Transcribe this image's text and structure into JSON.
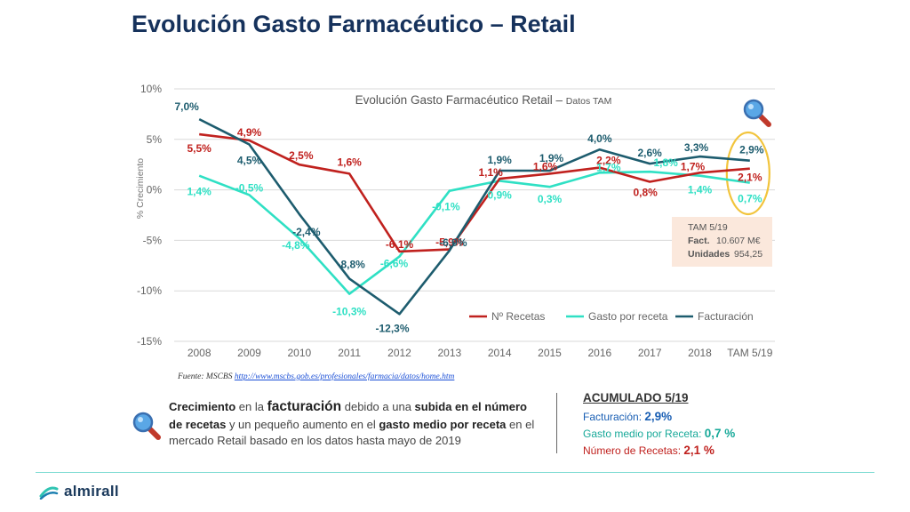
{
  "slide": {
    "title": "Evolución Gasto Farmacéutico – Retail",
    "source_prefix": "Fuente: MSCBS ",
    "source_link": "http://www.mscbs.gob.es/profesionales/farmacia/datos/home.htm",
    "logo_text": "almirall"
  },
  "chart_data": {
    "type": "line",
    "title": "Evolución Gasto Farmacéutico Retail",
    "title_connector": " – ",
    "subtitle": "Datos TAM",
    "ylabel": "% Crecimiento",
    "xlabel": "",
    "ylim": [
      -15,
      10
    ],
    "yticks": [
      10,
      5,
      0,
      -5,
      -10,
      -15
    ],
    "ytick_labels": [
      "10%",
      "5%",
      "0%",
      "-5%",
      "-10%",
      "-15%"
    ],
    "categories": [
      "2008",
      "2009",
      "2010",
      "2011",
      "2012",
      "2013",
      "2014",
      "2015",
      "2016",
      "2017",
      "2018",
      "TAM 5/19"
    ],
    "legend_position": "bottom-right",
    "series": [
      {
        "name": "Nº Recetas",
        "color": "#c0211e",
        "values": [
          5.5,
          4.9,
          2.5,
          1.6,
          -6.1,
          -5.9,
          1.1,
          1.6,
          2.2,
          0.8,
          1.7,
          2.1
        ],
        "labels": [
          "5,5%",
          "4,9%",
          "2,5%",
          "1,6%",
          "-6,1%",
          "-5,9%",
          "1,1%",
          "1,6%",
          "2,2%",
          "0,8%",
          "1,7%",
          "2,1%"
        ]
      },
      {
        "name": "Gasto por receta",
        "color": "#2fe0c4",
        "values": [
          1.4,
          -0.5,
          -4.8,
          -10.3,
          -6.6,
          -0.1,
          0.9,
          0.3,
          1.7,
          1.8,
          1.4,
          0.7
        ],
        "labels": [
          "1,4%",
          "-0,5%",
          "-4,8%",
          "-10,3%",
          "-6,6%",
          "-0,1%",
          "0,9%",
          "0,3%",
          "1,7%",
          "1,8%",
          "1,4%",
          "0,7%"
        ]
      },
      {
        "name": "Facturación",
        "color": "#1d5c6e",
        "values": [
          7.0,
          4.5,
          -2.4,
          -8.8,
          -12.3,
          -6.0,
          1.9,
          1.9,
          4.0,
          2.6,
          3.3,
          2.9
        ],
        "labels": [
          "7,0%",
          "4,5%",
          "-2,4%",
          "-8,8%",
          "-12,3%",
          "-6,0%",
          "1,9%",
          "1,9%",
          "4,0%",
          "2,6%",
          "3,3%",
          "2,9%"
        ]
      }
    ],
    "annotation_box": {
      "title": "TAM 5/19",
      "fact_label": "Fact.",
      "fact_value": "10.607 M€",
      "units_label": "Unidades",
      "units_value": "954,25"
    }
  },
  "summary": {
    "w1": "Crecimiento",
    "t1": " en la ",
    "w2": "facturación",
    "t2": " debido a una ",
    "w3": "subida en el número de recetas",
    "t3": " y un pequeño aumento en el ",
    "w4": "gasto medio por receta",
    "t4": " en el mercado Retail basado en los datos hasta mayo de 2019"
  },
  "accumulated": {
    "title": "ACUMULADO 5/19",
    "facturacion_label": "Facturación: ",
    "facturacion_value": "2,9%",
    "gasto_label": "Gasto medio por Receta: ",
    "gasto_value": "0,7 %",
    "recetas_label": "Número de Recetas: ",
    "recetas_value": "2,1 %"
  },
  "colors": {
    "title": "#16325c",
    "highlight_ellipse": "#f2c43c",
    "annotation_bg": "#fbe8dc",
    "footer_line": "#7fdcd3"
  }
}
